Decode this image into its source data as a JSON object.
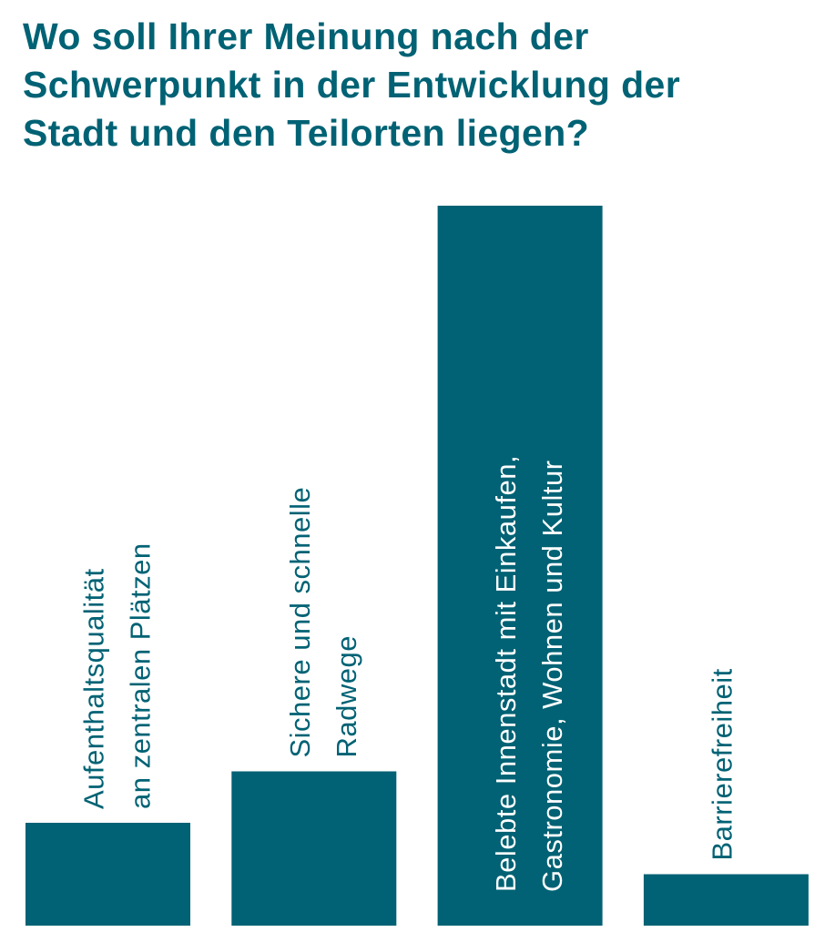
{
  "chart_data": {
    "type": "bar",
    "title_lines": [
      "Wo soll Ihrer Meinung nach der",
      "Schwerpunkt in der Entwicklung der",
      "Stadt und den Teilorten liegen?"
    ],
    "categories": [
      [
        "Aufenthaltsqualität",
        "an zentralen Plätzen"
      ],
      [
        "Sichere und schnelle",
        "Radwege"
      ],
      [
        "Belebte Innenstadt mit Einkaufen,",
        "Gastronomie, Wohnen und Kultur"
      ],
      [
        "Barrierefreiheit"
      ]
    ],
    "values": [
      2,
      3,
      14,
      1
    ],
    "ylim": [
      0,
      14
    ],
    "xlabel": "",
    "ylabel": "",
    "grid": false,
    "axes_visible": false,
    "label_orientation": "vertical",
    "colors": {
      "bar": "#006274",
      "label_outside": "#006274",
      "label_inside": "#ffffff",
      "title": "#006274"
    }
  }
}
